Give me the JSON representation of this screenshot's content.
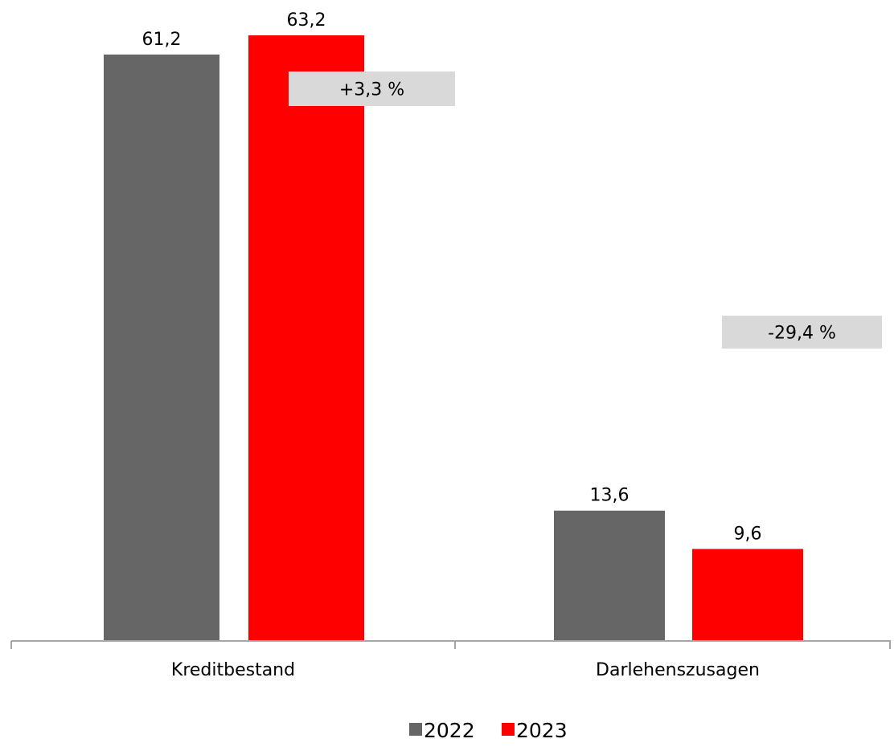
{
  "chart_data": {
    "type": "bar",
    "categories": [
      "Kreditbestand",
      "Darlehenszusagen"
    ],
    "series": [
      {
        "name": "2022",
        "color": "#666666",
        "values": [
          61.2,
          13.6
        ],
        "labels": [
          "61,2",
          "13,6"
        ]
      },
      {
        "name": "2023",
        "color": "#ff0000",
        "values": [
          63.2,
          9.6
        ],
        "labels": [
          "63,2",
          "9,6"
        ]
      }
    ],
    "change_labels": [
      "+3,3 %",
      "-29,4 %"
    ],
    "change_box_color": "#d9d9d9",
    "axis_color": "#a6a6a6",
    "legend_position": "bottom",
    "ylim": [
      0,
      63.2
    ],
    "title": "",
    "xlabel": "",
    "ylabel": ""
  }
}
